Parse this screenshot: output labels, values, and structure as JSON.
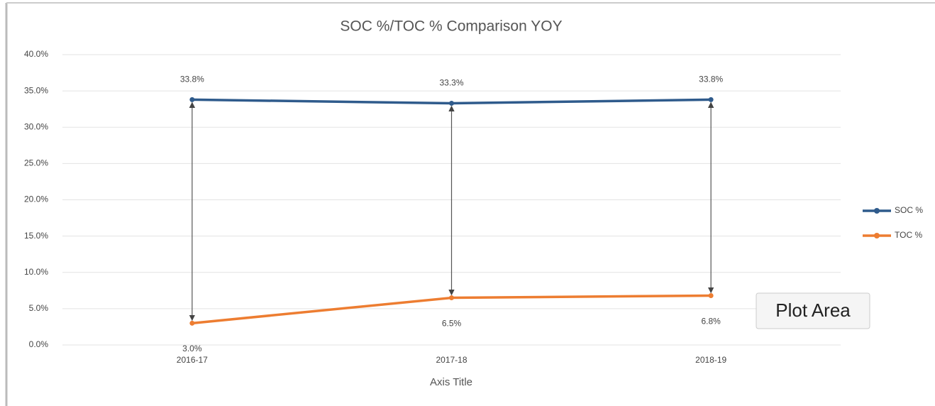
{
  "chart_data": {
    "type": "line",
    "title": "SOC %/TOC % Comparison YOY",
    "x_label": "Axis Title",
    "categories": [
      "2016-17",
      "2017-18",
      "2018-19"
    ],
    "series": [
      {
        "name": "SOC %",
        "color": "#2f5b8c",
        "values": [
          33.8,
          33.3,
          33.8
        ],
        "value_labels": [
          "33.8%",
          "33.3%",
          "33.8%"
        ]
      },
      {
        "name": "TOC %",
        "color": "#ed7d31",
        "values": [
          3.0,
          6.5,
          6.8
        ],
        "value_labels": [
          "3.0%",
          "6.5%",
          "6.8%"
        ]
      }
    ],
    "ylim": [
      0,
      40
    ],
    "yticks": [
      {
        "value": 0,
        "label": "0.0%"
      },
      {
        "value": 5,
        "label": "5.0%"
      },
      {
        "value": 10,
        "label": "10.0%"
      },
      {
        "value": 15,
        "label": "15.0%"
      },
      {
        "value": 20,
        "label": "20.0%"
      },
      {
        "value": 25,
        "label": "25.0%"
      },
      {
        "value": 30,
        "label": "30.0%"
      },
      {
        "value": 35,
        "label": "35.0%"
      },
      {
        "value": 40,
        "label": "40.0%"
      }
    ],
    "grid": true,
    "legend": "right",
    "tooltip": "Plot Area"
  }
}
